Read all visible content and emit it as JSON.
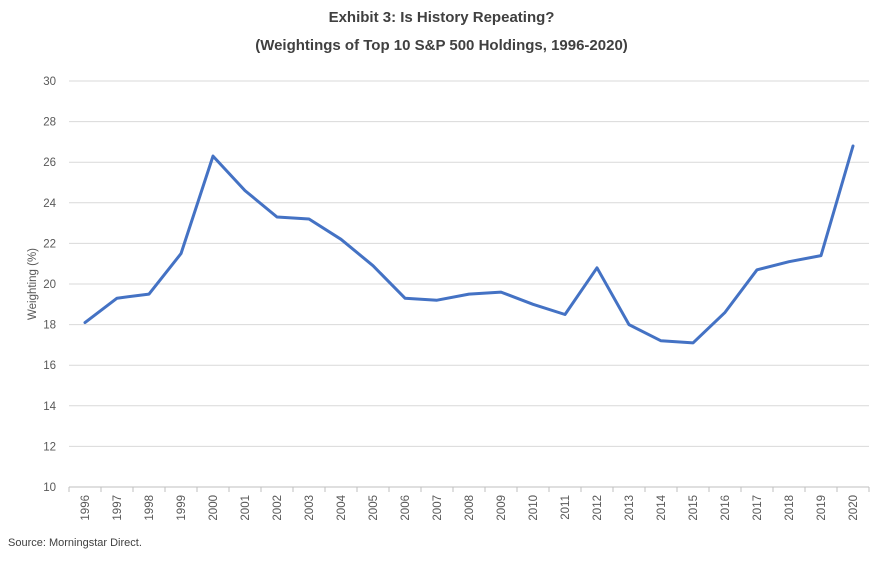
{
  "chart_data": {
    "type": "line",
    "title": "Exhibit 3: Is History Repeating?",
    "subtitle": "(Weightings of Top 10 S&P 500 Holdings, 1996-2020)",
    "xlabel": "",
    "ylabel": "Weighting (%)",
    "ylim": [
      10,
      30
    ],
    "yticks": [
      10,
      12,
      14,
      16,
      18,
      20,
      22,
      24,
      26,
      28,
      30
    ],
    "grid": true,
    "legend": "none",
    "categories": [
      "1996",
      "1997",
      "1998",
      "1999",
      "2000",
      "2001",
      "2002",
      "2003",
      "2004",
      "2005",
      "2006",
      "2007",
      "2008",
      "2009",
      "2010",
      "2011",
      "2012",
      "2013",
      "2014",
      "2015",
      "2016",
      "2017",
      "2018",
      "2019",
      "2020"
    ],
    "series": [
      {
        "values": [
          18.1,
          19.3,
          19.5,
          21.5,
          26.3,
          24.6,
          23.3,
          23.2,
          22.2,
          20.9,
          19.3,
          19.2,
          19.5,
          19.6,
          19.0,
          18.5,
          20.8,
          18.0,
          17.2,
          17.1,
          18.6,
          20.7,
          21.1,
          21.4,
          26.8
        ],
        "color": "#4472c4"
      }
    ],
    "source": "Source: Morningstar Direct."
  }
}
